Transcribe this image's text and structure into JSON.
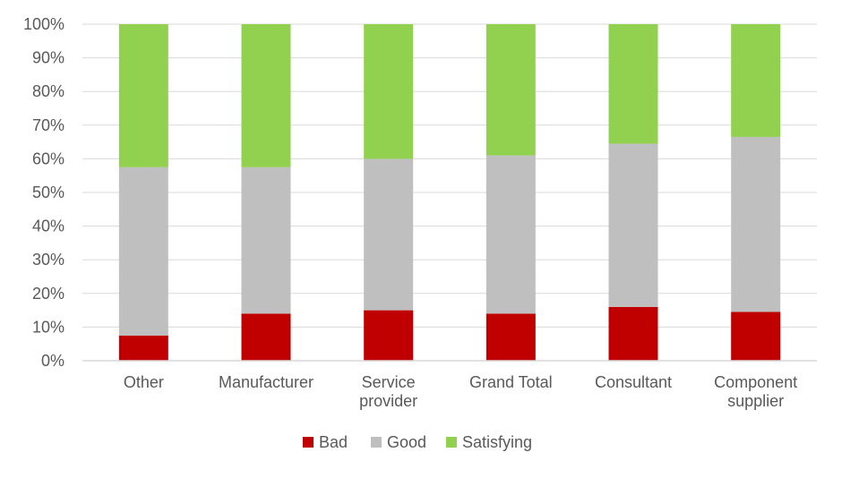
{
  "chart_data": {
    "type": "bar",
    "stacked": true,
    "categories": [
      "Other",
      "Manufacturer",
      "Service provider",
      "Grand Total",
      "Consultant",
      "Component supplier"
    ],
    "category_lines": [
      [
        "Other"
      ],
      [
        "Manufacturer"
      ],
      [
        "Service",
        "provider"
      ],
      [
        "Grand Total"
      ],
      [
        "Consultant"
      ],
      [
        "Component",
        "supplier"
      ]
    ],
    "series": [
      {
        "name": "Bad",
        "color": "#C00000",
        "values": [
          7.5,
          14,
          15,
          14,
          16,
          14.5
        ]
      },
      {
        "name": "Good",
        "color": "#BFBFBF",
        "values": [
          50,
          43.5,
          45,
          47,
          48.5,
          52
        ]
      },
      {
        "name": "Satisfying",
        "color": "#92D050",
        "values": [
          42.5,
          42.5,
          40,
          39,
          35.5,
          33.5
        ]
      }
    ],
    "ylim": [
      0,
      100
    ],
    "y_ticks": [
      "0%",
      "10%",
      "20%",
      "30%",
      "40%",
      "50%",
      "60%",
      "70%",
      "80%",
      "90%",
      "100%"
    ],
    "grid": true,
    "legend_position": "bottom"
  }
}
